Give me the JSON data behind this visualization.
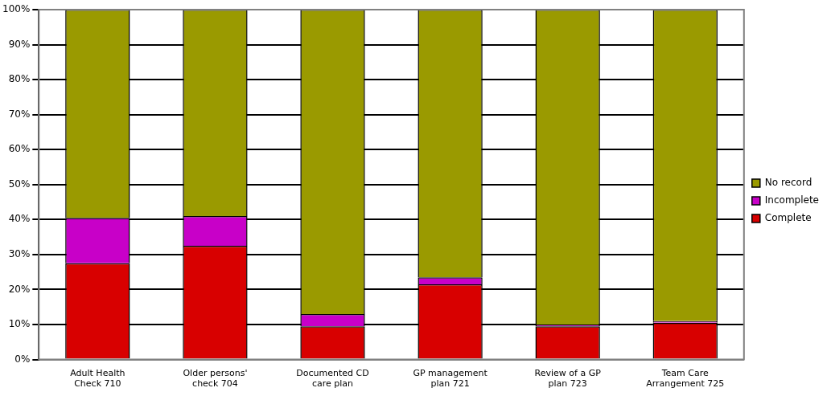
{
  "chart_data": {
    "type": "bar",
    "stacked": true,
    "categories": [
      "Adult Health Check 710",
      "Older persons' check 704",
      "Documented CD care plan",
      "GP management plan 721",
      "Review of a GP plan 723",
      "Team Care Arrangement 725"
    ],
    "series": [
      {
        "name": "Complete",
        "color": "#d80000",
        "values": [
          27.5,
          32.5,
          9.5,
          21.5,
          9.5,
          10.5
        ]
      },
      {
        "name": "Incomplete",
        "color": "#c800c8",
        "values": [
          13,
          8.5,
          3.5,
          2,
          0.5,
          0.5
        ]
      },
      {
        "name": "No record",
        "color": "#9a9a00",
        "values": [
          59.5,
          59,
          87,
          76.5,
          90,
          89
        ]
      }
    ],
    "ylim": [
      0,
      100
    ],
    "yticks": [
      {
        "value": 0,
        "label": "0%"
      },
      {
        "value": 10,
        "label": "10%"
      },
      {
        "value": 20,
        "label": "20%"
      },
      {
        "value": 30,
        "label": "30%"
      },
      {
        "value": 40,
        "label": "40%"
      },
      {
        "value": 50,
        "label": "50%"
      },
      {
        "value": 60,
        "label": "60%"
      },
      {
        "value": 70,
        "label": "70%"
      },
      {
        "value": 80,
        "label": "80%"
      },
      {
        "value": 90,
        "label": "90%"
      },
      {
        "value": 100,
        "label": "100%"
      }
    ],
    "grid": "y",
    "legend": "right"
  }
}
